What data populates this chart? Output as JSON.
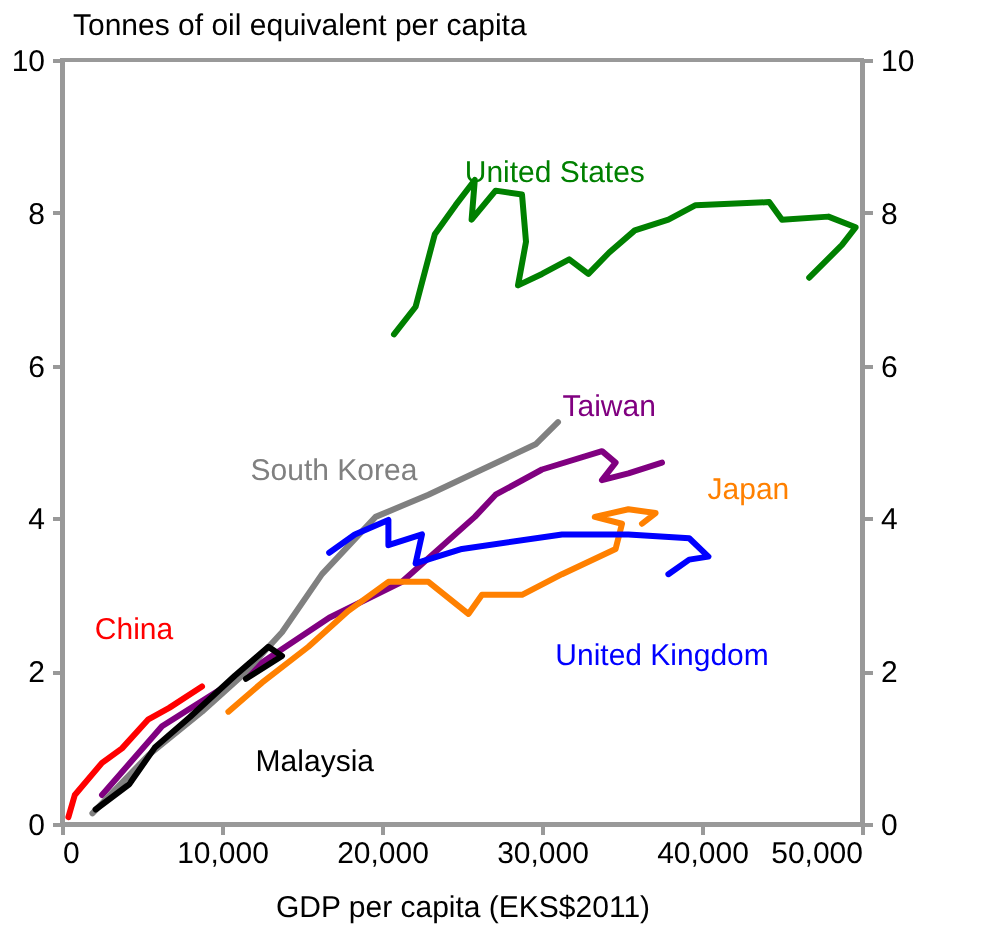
{
  "chart_data": {
    "type": "line",
    "ylabel": "Tonnes of oil equivalent per capita",
    "xlabel": "GDP per capita  (EKS$2011)",
    "xlim": [
      0,
      50000
    ],
    "xticks": [
      0,
      {
        "value": 10000,
        "label": "10,000"
      },
      {
        "value": 20000,
        "label": "20,000"
      },
      {
        "value": 30000,
        "label": "30,000"
      },
      {
        "value": 40000,
        "label": "40,000"
      },
      {
        "value": 50000,
        "label": "50,000"
      }
    ],
    "ylim": [
      0,
      10
    ],
    "yticks": [
      0,
      2,
      4,
      6,
      8,
      10
    ],
    "y2lim": [
      0,
      10
    ],
    "y2ticks": [
      0,
      2,
      4,
      6,
      8,
      10
    ],
    "grid": false,
    "series": [
      {
        "name": "United States",
        "color": "#008000",
        "x": [
          20750,
          22100,
          23300,
          24600,
          25800,
          25600,
          27100,
          28750,
          29000,
          28500,
          30000,
          31700,
          32900,
          34200,
          35800,
          37900,
          39600,
          44200,
          45000,
          47900,
          49600,
          48750,
          46700
        ],
        "values": [
          6.41,
          6.77,
          7.72,
          8.1,
          8.43,
          7.91,
          8.29,
          8.24,
          7.62,
          7.05,
          7.2,
          7.39,
          7.2,
          7.48,
          7.77,
          7.91,
          8.1,
          8.14,
          7.91,
          7.95,
          7.81,
          7.58,
          7.15
        ]
      },
      {
        "name": "Taiwan",
        "color": "#800080",
        "x": [
          2500,
          6250,
          11250,
          16700,
          21250,
          25800,
          27100,
          30000,
          33750,
          34600,
          33750,
          35400,
          37500
        ],
        "values": [
          0.38,
          1.28,
          1.94,
          2.7,
          3.17,
          4.02,
          4.31,
          4.64,
          4.88,
          4.73,
          4.5,
          4.59,
          4.73
        ]
      },
      {
        "name": "South Korea",
        "color": "#808080",
        "x": [
          1900,
          5400,
          8750,
          11250,
          13750,
          16250,
          19600,
          22900,
          26250,
          29600,
          31000
        ],
        "values": [
          0.14,
          0.9,
          1.47,
          1.94,
          2.51,
          3.27,
          4.02,
          4.31,
          4.64,
          4.97,
          5.26
        ]
      },
      {
        "name": "Japan",
        "color": "#ff8000",
        "x": [
          10400,
          12500,
          15400,
          17900,
          20400,
          22900,
          25400,
          26250,
          28750,
          31250,
          34600,
          35000,
          33300,
          35400,
          37100,
          36250
        ],
        "values": [
          1.47,
          1.85,
          2.32,
          2.79,
          3.17,
          3.17,
          2.75,
          3.0,
          3.0,
          3.27,
          3.6,
          3.93,
          4.02,
          4.12,
          4.07,
          3.93
        ]
      },
      {
        "name": "China",
        "color": "#ff0000",
        "x": [
          400,
          800,
          2500,
          3750,
          5400,
          6700,
          8750
        ],
        "values": [
          0.09,
          0.38,
          0.8,
          0.99,
          1.37,
          1.52,
          1.8
        ]
      },
      {
        "name": "United Kingdom",
        "color": "#0000ff",
        "x": [
          16700,
          18300,
          20400,
          20400,
          22500,
          22100,
          25000,
          31250,
          35400,
          39200,
          40400,
          39200,
          37900
        ],
        "values": [
          3.55,
          3.79,
          3.98,
          3.65,
          3.79,
          3.41,
          3.6,
          3.79,
          3.79,
          3.74,
          3.5,
          3.46,
          3.27
        ]
      },
      {
        "name": "Malaysia",
        "color": "#000000",
        "x": [
          2100,
          4200,
          5800,
          8000,
          10800,
          12900,
          13750,
          11500
        ],
        "values": [
          0.19,
          0.52,
          1.0,
          1.4,
          1.94,
          2.32,
          2.2,
          1.9
        ]
      }
    ]
  }
}
